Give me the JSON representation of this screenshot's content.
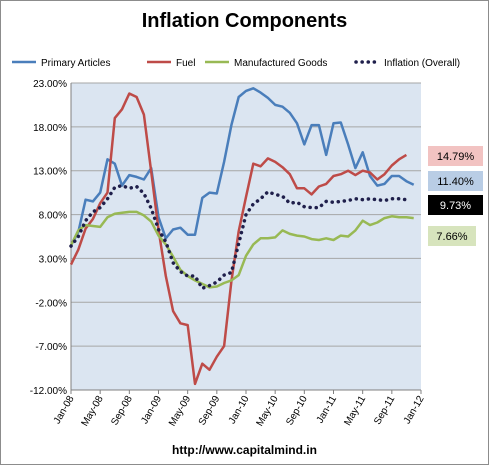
{
  "chart_data": {
    "type": "line",
    "title": "Inflation Components",
    "source_note": "http://www.capitalmind.in",
    "xlabel": "",
    "ylabel": "",
    "ylim": [
      -0.12,
      0.23
    ],
    "yticks": [
      "23.00%",
      "18.00%",
      "13.00%",
      "8.00%",
      "3.00%",
      "-2.00%",
      "-7.00%",
      "-12.00%"
    ],
    "ytick_values": [
      0.23,
      0.18,
      0.13,
      0.08,
      0.03,
      -0.02,
      -0.07,
      -0.12
    ],
    "xticks": [
      "Jan-08",
      "May-08",
      "Sep-08",
      "Jan-09",
      "May-09",
      "Sep-09",
      "Jan-10",
      "May-10",
      "Sep-10",
      "Jan-11",
      "May-11",
      "Sep-11",
      "Jan-12"
    ],
    "x_start": "Jan-08",
    "x_end": "Jan-12",
    "grid": true,
    "legend_position": "top",
    "series": [
      {
        "name": "Primary Articles",
        "color": "#4a7ebb",
        "style": "solid",
        "values": [
          0.045,
          0.06,
          0.097,
          0.095,
          0.105,
          0.143,
          0.138,
          0.113,
          0.125,
          0.123,
          0.12,
          0.133,
          0.077,
          0.053,
          0.063,
          0.065,
          0.057,
          0.057,
          0.099,
          0.105,
          0.104,
          0.14,
          0.182,
          0.214,
          0.221,
          0.224,
          0.219,
          0.213,
          0.205,
          0.203,
          0.196,
          0.184,
          0.16,
          0.182,
          0.182,
          0.148,
          0.184,
          0.185,
          0.16,
          0.133,
          0.151,
          0.124,
          0.113,
          0.115,
          0.124,
          0.124,
          0.118,
          0.114
        ]
      },
      {
        "name": "Fuel",
        "color": "#be4b48",
        "style": "solid",
        "values": [
          0.023,
          0.04,
          0.064,
          0.075,
          0.093,
          0.105,
          0.19,
          0.2,
          0.218,
          0.214,
          0.194,
          0.129,
          0.063,
          0.01,
          -0.03,
          -0.044,
          -0.046,
          -0.113,
          -0.09,
          -0.097,
          -0.082,
          -0.07,
          0.004,
          0.061,
          0.1,
          0.138,
          0.135,
          0.144,
          0.14,
          0.134,
          0.126,
          0.11,
          0.11,
          0.103,
          0.112,
          0.115,
          0.124,
          0.126,
          0.13,
          0.125,
          0.13,
          0.128,
          0.12,
          0.126,
          0.136,
          0.143,
          0.148
        ]
      },
      {
        "name": "Manufactured Goods",
        "color": "#98b954",
        "style": "solid",
        "values": [
          0.045,
          0.062,
          0.068,
          0.067,
          0.066,
          0.077,
          0.081,
          0.082,
          0.083,
          0.083,
          0.079,
          0.072,
          0.056,
          0.046,
          0.032,
          0.017,
          0.01,
          0.005,
          0.001,
          -0.003,
          -0.002,
          0.002,
          0.005,
          0.011,
          0.033,
          0.046,
          0.053,
          0.053,
          0.054,
          0.062,
          0.058,
          0.056,
          0.055,
          0.052,
          0.051,
          0.053,
          0.051,
          0.056,
          0.055,
          0.062,
          0.073,
          0.068,
          0.071,
          0.076,
          0.078,
          0.077,
          0.077,
          0.076
        ]
      },
      {
        "name": "Inflation (Overall)",
        "color": "#1f1f4b",
        "style": "dotted",
        "values": [
          0.044,
          0.055,
          0.073,
          0.083,
          0.088,
          0.098,
          0.111,
          0.113,
          0.11,
          0.112,
          0.104,
          0.087,
          0.063,
          0.049,
          0.025,
          0.015,
          0.01,
          0.01,
          -0.004,
          -0.001,
          0.003,
          0.011,
          0.014,
          0.047,
          0.08,
          0.092,
          0.098,
          0.106,
          0.103,
          0.101,
          0.093,
          0.094,
          0.089,
          0.088,
          0.088,
          0.095,
          0.094,
          0.095,
          0.096,
          0.098,
          0.097,
          0.098,
          0.097,
          0.096,
          0.098,
          0.098,
          0.097
        ]
      }
    ],
    "callouts": [
      {
        "text": "14.79%",
        "bg": "#f2c3c2",
        "fg": "#000000"
      },
      {
        "text": "11.40%",
        "bg": "#b9cde5",
        "fg": "#000000"
      },
      {
        "text": "9.73%",
        "bg": "#000000",
        "fg": "#ffffff"
      },
      {
        "text": "7.66%",
        "bg": "#d7e4bd",
        "fg": "#000000"
      }
    ]
  }
}
